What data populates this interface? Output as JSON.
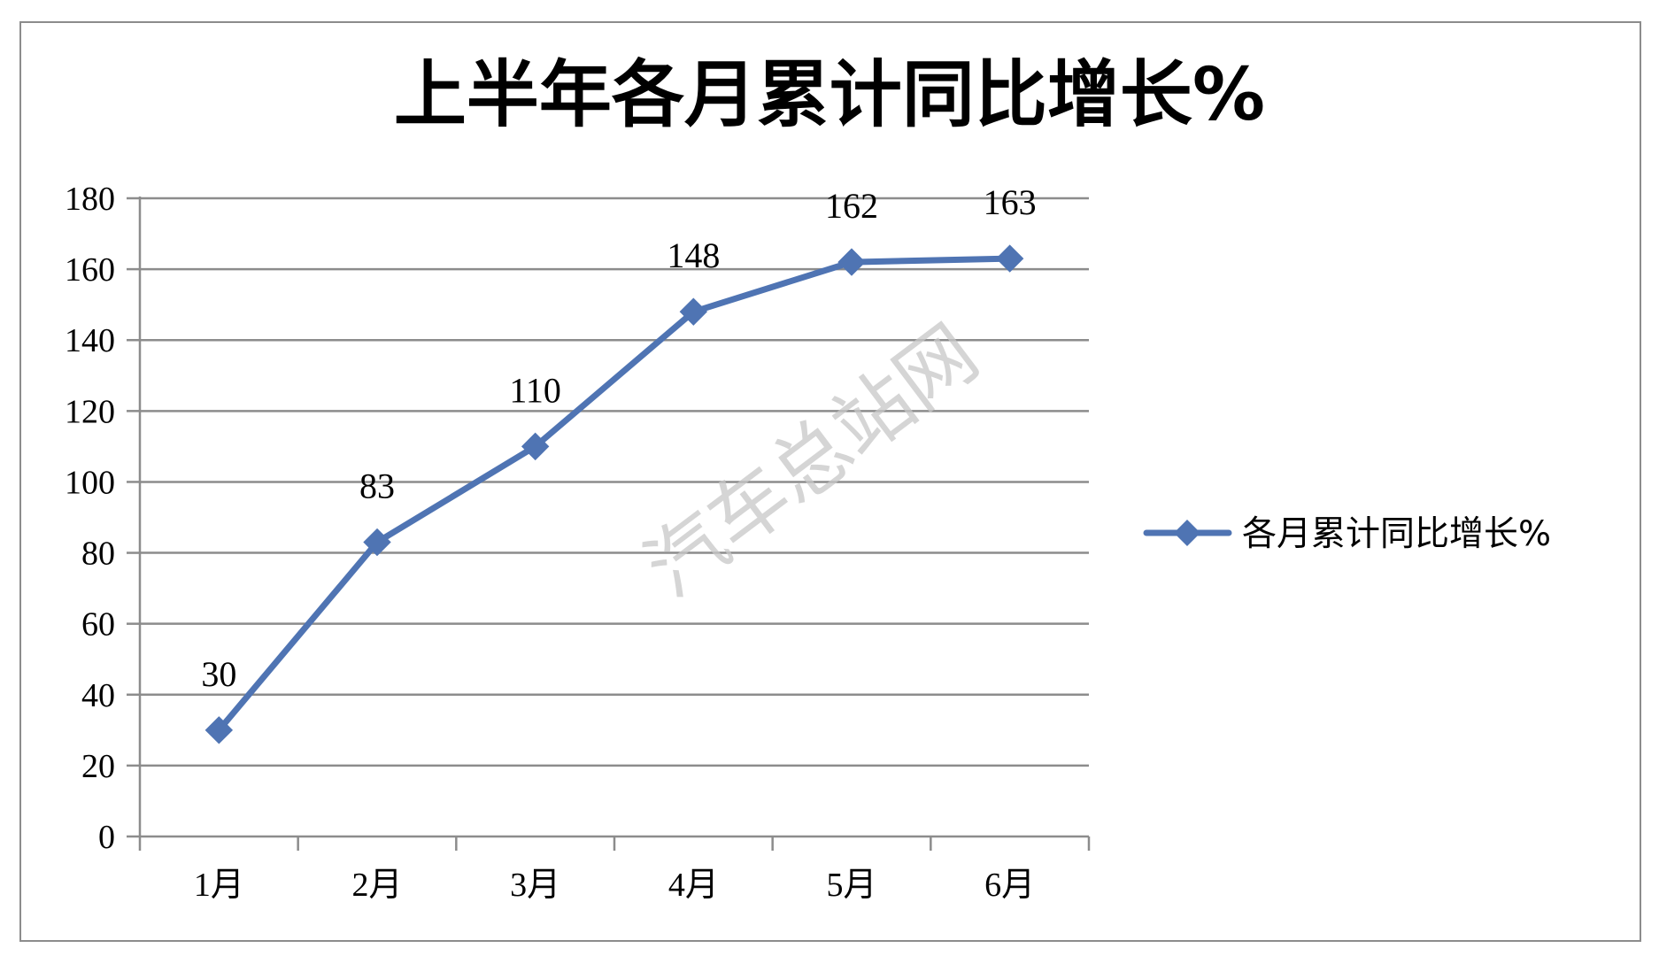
{
  "chart_data": {
    "type": "line",
    "title": "上半年各月累计同比增长%",
    "categories": [
      "1月",
      "2月",
      "3月",
      "4月",
      "5月",
      "6月"
    ],
    "series": [
      {
        "name": "各月累计同比增长%",
        "values": [
          30,
          83,
          110,
          148,
          162,
          163
        ],
        "color": "#4F74B3"
      }
    ],
    "data_labels": [
      "30",
      "83",
      "110",
      "148",
      "162",
      "163"
    ],
    "y_ticks": [
      "0",
      "20",
      "40",
      "60",
      "80",
      "100",
      "120",
      "140",
      "160",
      "180"
    ],
    "ylim": [
      0,
      180
    ],
    "grid": true,
    "legend_position": "right",
    "marker": "diamond",
    "watermark": "汽车总站网"
  }
}
